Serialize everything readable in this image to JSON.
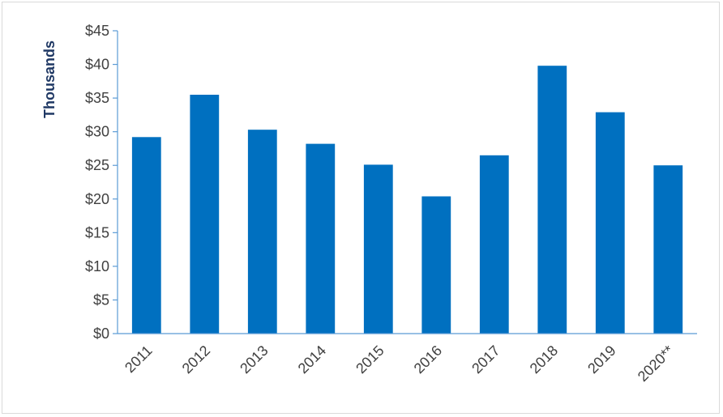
{
  "chart_data": {
    "type": "bar",
    "title": "",
    "xlabel": "",
    "ylabel": "Thousands",
    "categories": [
      "2011",
      "2012",
      "2013",
      "2014",
      "2015",
      "2016",
      "2017",
      "2018",
      "2019",
      "2020**"
    ],
    "values": [
      29.2,
      35.5,
      30.3,
      28.2,
      25.1,
      20.4,
      26.5,
      39.8,
      32.9,
      25.0
    ],
    "ylim": [
      0,
      45
    ],
    "ytick_values": [
      0,
      5,
      10,
      15,
      20,
      25,
      30,
      35,
      40,
      45
    ],
    "ytick_labels": [
      "$0",
      "$5",
      "$10",
      "$15",
      "$20",
      "$25",
      "$30",
      "$35",
      "$40",
      "$45"
    ],
    "bar_color": "#0070c0",
    "axis_color": "#5b9bd5",
    "grid": false,
    "legend": "none"
  }
}
